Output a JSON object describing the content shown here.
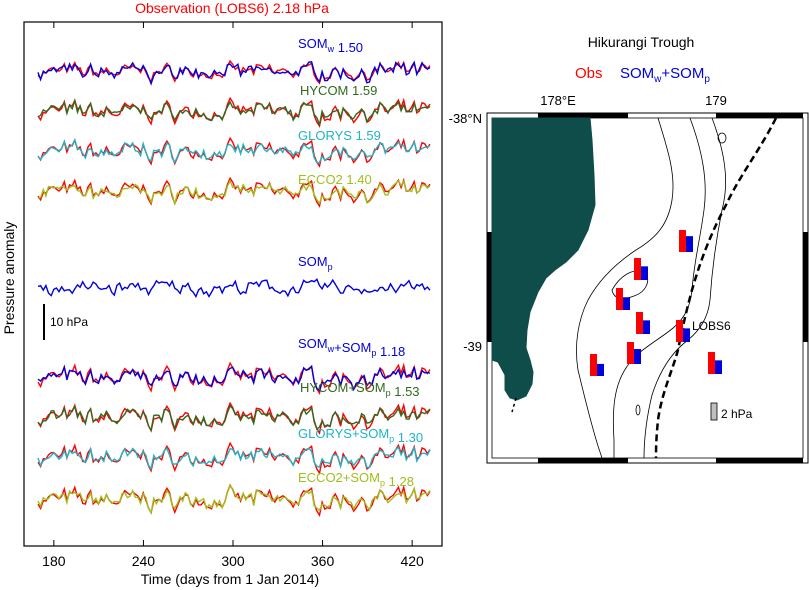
{
  "colors": {
    "obs": "#ff0000",
    "somw": "#0000dd",
    "hycom": "#2f6a1e",
    "glorys": "#1fb3c6",
    "ecco2": "#9fbf1a",
    "land": "#0f4d4a",
    "frame": "#000000"
  },
  "left_panel": {
    "title": "Observation (LOBS6) 2.18 hPa",
    "ylabel": "Pressure anomaly",
    "xlabel": "Time (days from 1 Jan 2014)",
    "scale_bar_label": "10 hPa",
    "upper_labels": [
      {
        "name": "SOM",
        "sub": "w",
        "value": "1.50",
        "color": "#0000dd"
      },
      {
        "name": "HYCOM",
        "sub": "",
        "value": "1.59",
        "color": "#2f6a1e"
      },
      {
        "name": "GLORYS",
        "sub": "",
        "value": "1.59",
        "color": "#1fb3c6"
      },
      {
        "name": "ECCO2",
        "sub": "",
        "value": "1.40",
        "color": "#9fbf1a"
      }
    ],
    "middle_label": {
      "name": "SOM",
      "sub": "p",
      "color": "#0000dd"
    },
    "lower_labels": [
      {
        "name": "SOM",
        "sub": "w",
        "plus": "+SOM",
        "plus_sub": "p",
        "value": "1.18",
        "color": "#0000dd"
      },
      {
        "name": "HYCOM",
        "sub": "",
        "plus": "+SOM",
        "plus_sub": "p",
        "value": "1.53",
        "color": "#2f6a1e"
      },
      {
        "name": "GLORYS",
        "sub": "",
        "plus": "+SOM",
        "plus_sub": "p",
        "value": "1.30",
        "color": "#1fb3c6"
      },
      {
        "name": "ECCO2",
        "sub": "",
        "plus": "+SOM",
        "plus_sub": "p",
        "value": "1.28",
        "color": "#9fbf1a"
      }
    ],
    "x_ticks": [
      "180",
      "240",
      "300",
      "360",
      "420"
    ]
  },
  "chart_data": [
    {
      "type": "line",
      "title": "Observation (LOBS6) 2.18 hPa",
      "xlabel": "Time (days from 1 Jan 2014)",
      "ylabel": "Pressure anomaly",
      "xlim": [
        160,
        440
      ],
      "x_ticks": [
        180,
        240,
        300,
        360,
        420
      ],
      "scale_bar": "10 hPa",
      "series": [
        {
          "name": "SOMw",
          "rms": "1.50"
        },
        {
          "name": "HYCOM",
          "rms": "1.59"
        },
        {
          "name": "GLORYS",
          "rms": "1.59"
        },
        {
          "name": "ECCO2",
          "rms": "1.40"
        },
        {
          "name": "SOMp"
        },
        {
          "name": "SOMw+SOMp",
          "rms": "1.18"
        },
        {
          "name": "HYCOM+SOMp",
          "rms": "1.53"
        },
        {
          "name": "GLORYS+SOMp",
          "rms": "1.30"
        },
        {
          "name": "ECCO2+SOMp",
          "rms": "1.28"
        }
      ]
    },
    {
      "type": "bar",
      "title": "Hikurangi Trough",
      "legend": [
        "Obs",
        "SOMw+SOMp"
      ],
      "scale_bar": "2 hPa",
      "station_label": "LOBS6",
      "axis_labels": {
        "lon": [
          "178°E",
          "179"
        ],
        "lat": [
          "-38°N",
          "-39"
        ]
      },
      "stations": [
        {
          "obs": 1.0,
          "model": 0.72
        },
        {
          "obs": 1.0,
          "model": 0.62
        },
        {
          "obs": 1.0,
          "model": 0.58
        },
        {
          "obs": 1.0,
          "model": 0.62
        },
        {
          "obs": 1.0,
          "model": 0.62
        },
        {
          "obs": 1.0,
          "model": 0.68
        },
        {
          "obs": 1.0,
          "model": 0.55
        },
        {
          "obs": 1.0,
          "model": 0.62
        }
      ]
    }
  ],
  "right_panel": {
    "title": "Hikurangi Trough",
    "legend_obs": "Obs",
    "legend_model": "SOM",
    "legend_sub_w": "w",
    "legend_plus": "+SOM",
    "legend_sub_p": "p",
    "lon_labels": [
      "178°E",
      "179"
    ],
    "lat_labels": [
      "-38°N",
      "-39"
    ],
    "station_label": "LOBS6",
    "scale_label": "2 hPa"
  }
}
